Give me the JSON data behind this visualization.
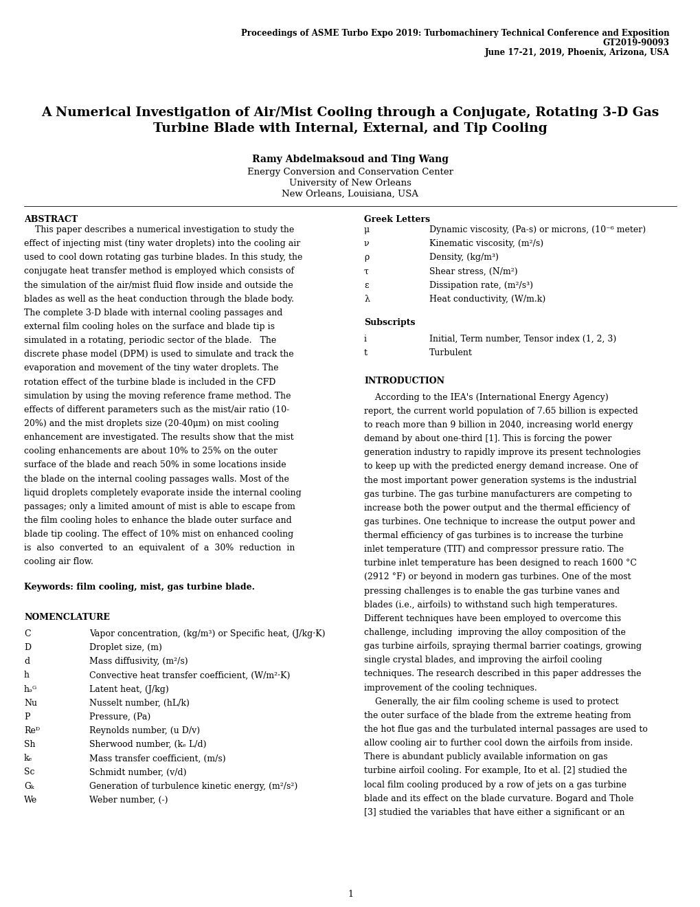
{
  "bg_color": "#ffffff",
  "page_width": 10.2,
  "page_height": 13.2,
  "dpi": 100,
  "header_line1": "Proceedings of ASME Turbo Expo 2019: Turbomachinery Technical Conference and Exposition",
  "header_line2": "GT2019-90093",
  "header_line3": "June 17-21, 2019, Phoenix, Arizona, USA",
  "title_line1": "A Numerical Investigation of Air/Mist Cooling through a Conjugate, Rotating 3-D Gas",
  "title_line2": "Turbine Blade with Internal, External, and Tip Cooling",
  "author": "Ramy Abdelmaksoud and Ting Wang",
  "affil1": "Energy Conversion and Conservation Center",
  "affil2": "University of New Orleans",
  "affil3": "New Orleans, Louisiana, USA",
  "abstract_title": "ABSTRACT",
  "abstract_lines": [
    "    This paper describes a numerical investigation to study the",
    "effect of injecting mist (tiny water droplets) into the cooling air",
    "used to cool down rotating gas turbine blades. In this study, the",
    "conjugate heat transfer method is employed which consists of",
    "the simulation of the air/mist fluid flow inside and outside the",
    "blades as well as the heat conduction through the blade body.",
    "The complete 3-D blade with internal cooling passages and",
    "external film cooling holes on the surface and blade tip is",
    "simulated in a rotating, periodic sector of the blade.   The",
    "discrete phase model (DPM) is used to simulate and track the",
    "evaporation and movement of the tiny water droplets. The",
    "rotation effect of the turbine blade is included in the CFD",
    "simulation by using the moving reference frame method. The",
    "effects of different parameters such as the mist/air ratio (10-",
    "20%) and the mist droplets size (20-40μm) on mist cooling",
    "enhancement are investigated. The results show that the mist",
    "cooling enhancements are about 10% to 25% on the outer",
    "surface of the blade and reach 50% in some locations inside",
    "the blade on the internal cooling passages walls. Most of the",
    "liquid droplets completely evaporate inside the internal cooling",
    "passages; only a limited amount of mist is able to escape from",
    "the film cooling holes to enhance the blade outer surface and",
    "blade tip cooling. The effect of 10% mist on enhanced cooling",
    "is  also  converted  to  an  equivalent  of  a  30%  reduction  in",
    "cooling air flow."
  ],
  "keywords_text": "Keywords: film cooling, mist, gas turbine blade.",
  "nomenclature_title": "NOMENCLATURE",
  "nomenclature_items": [
    [
      "C",
      "Vapor concentration, (kg/m³) or Specific heat, (J/kg·K)"
    ],
    [
      "D",
      "Droplet size, (m)"
    ],
    [
      "d",
      "Mass diffusivity, (m²/s)"
    ],
    [
      "h",
      "Convective heat transfer coefficient, (W/m²·K)"
    ],
    [
      "hₔᴳ",
      "Latent heat, (J/kg)"
    ],
    [
      "Nu",
      "Nusselt number, (hL/k)"
    ],
    [
      "P",
      "Pressure, (Pa)"
    ],
    [
      "Reᴰ",
      "Reynolds number, (u D/v)"
    ],
    [
      "Sh",
      "Sherwood number, (kₑ L/d)"
    ],
    [
      "kₑ",
      "Mass transfer coefficient, (m/s)"
    ],
    [
      "Sc",
      "Schmidt number, (v/d)"
    ],
    [
      "Gₖ",
      "Generation of turbulence kinetic energy, (m²/s²)"
    ],
    [
      "We",
      "Weber number, (-)"
    ]
  ],
  "greek_title": "Greek Letters",
  "greek_items": [
    [
      "μ",
      "Dynamic viscosity, (Pa-s) or microns, (10⁻⁶ meter)"
    ],
    [
      "ν",
      "Kinematic viscosity, (m²/s)"
    ],
    [
      "ρ",
      "Density, (kg/m³)"
    ],
    [
      "τ",
      "Shear stress, (N/m²)"
    ],
    [
      "ε",
      "Dissipation rate, (m²/s³)"
    ],
    [
      "λ",
      "Heat conductivity, (W/m.k)"
    ]
  ],
  "subscripts_title": "Subscripts",
  "subscripts_items": [
    [
      "i",
      "Initial, Term number, Tensor index (1, 2, 3)"
    ],
    [
      "t",
      "Turbulent"
    ]
  ],
  "intro_title": "INTRODUCTION",
  "intro_lines": [
    "    According to the IEA's (International Energy Agency)",
    "report, the current world population of 7.65 billion is expected",
    "to reach more than 9 billion in 2040, increasing world energy",
    "demand by about one-third [1]. This is forcing the power",
    "generation industry to rapidly improve its present technologies",
    "to keep up with the predicted energy demand increase. One of",
    "the most important power generation systems is the industrial",
    "gas turbine. The gas turbine manufacturers are competing to",
    "increase both the power output and the thermal efficiency of",
    "gas turbines. One technique to increase the output power and",
    "thermal efficiency of gas turbines is to increase the turbine",
    "inlet temperature (TIT) and compressor pressure ratio. The",
    "turbine inlet temperature has been designed to reach 1600 °C",
    "(2912 °F) or beyond in modern gas turbines. One of the most",
    "pressing challenges is to enable the gas turbine vanes and",
    "blades (i.e., airfoils) to withstand such high temperatures.",
    "Different techniques have been employed to overcome this",
    "challenge, including  improving the alloy composition of the",
    "gas turbine airfoils, spraying thermal barrier coatings, growing",
    "single crystal blades, and improving the airfoil cooling",
    "techniques. The research described in this paper addresses the",
    "improvement of the cooling techniques.",
    "    Generally, the air film cooling scheme is used to protect",
    "the outer surface of the blade from the extreme heating from",
    "the hot flue gas and the turbulated internal passages are used to",
    "allow cooling air to further cool down the airfoils from inside.",
    "There is abundant publicly available information on gas",
    "turbine airfoil cooling. For example, Ito et al. [2] studied the",
    "local film cooling produced by a row of jets on a gas turbine",
    "blade and its effect on the blade curvature. Bogard and Thole",
    "[3] studied the variables that have either a significant or an"
  ],
  "page_number": "1"
}
